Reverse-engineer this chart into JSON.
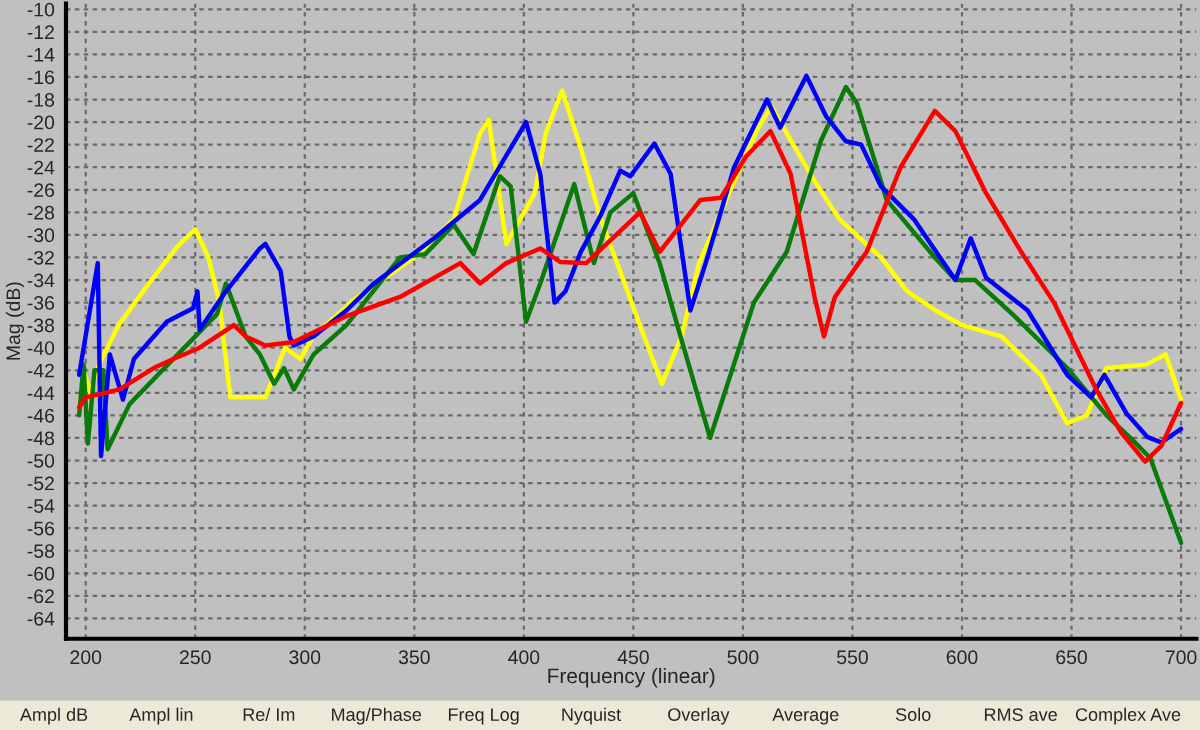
{
  "chart_data": {
    "type": "line",
    "xlabel": "Frequency (linear)",
    "ylabel": "Mag (dB)",
    "xlim": [
      191,
      707
    ],
    "xticks": [
      200,
      250,
      300,
      350,
      400,
      450,
      500,
      550,
      600,
      650,
      700
    ],
    "ylim": [
      -65.8,
      -9.5
    ],
    "yticks": [
      -64,
      -62,
      -60,
      -58,
      -56,
      -54,
      -52,
      -50,
      -48,
      -46,
      -44,
      -42,
      -40,
      -38,
      -36,
      -34,
      -32,
      -30,
      -28,
      -26,
      -24,
      -22,
      -20,
      -18,
      -16,
      -14,
      -12,
      -10
    ],
    "grid": true,
    "legend": false,
    "annotations": [
      "Ampl dB",
      "Ampl lin",
      "Re/ Im",
      "Mag/Phase",
      "Freq Log",
      "Nyquist",
      "Overlay",
      "Average",
      "Solo",
      "RMS ave",
      "Complex Ave"
    ],
    "series": [
      {
        "color": "#ffff00",
        "x": [
          197,
          199,
          202,
          206,
          215,
          230,
          242,
          250,
          256,
          261,
          266,
          282,
          291,
          298,
          304,
          322,
          350,
          368,
          380,
          384,
          392,
          405,
          410,
          417.5,
          426,
          435,
          453,
          463,
          472,
          480,
          495,
          507,
          513,
          520,
          532,
          544,
          563,
          575,
          588,
          600,
          618,
          636,
          648,
          657,
          666,
          684,
          693,
          700
        ],
        "values": [
          -46,
          -42,
          -44,
          -41.5,
          -38,
          -34,
          -31,
          -29.5,
          -32,
          -36,
          -44.4,
          -44.4,
          -40,
          -41,
          -39,
          -35.8,
          -32,
          -28.6,
          -21,
          -19.8,
          -30.8,
          -26.3,
          -21,
          -17.2,
          -22.3,
          -28.5,
          -38,
          -43.2,
          -39,
          -32.5,
          -25.7,
          -20.5,
          -18.6,
          -21,
          -25,
          -28.6,
          -32,
          -35,
          -36.7,
          -38,
          -39,
          -42.4,
          -46.7,
          -46,
          -41.8,
          -41.5,
          -40.6,
          -44.6
        ]
      },
      {
        "color": "#0a7a0a",
        "x": [
          197,
          199,
          201,
          204,
          208,
          210,
          220,
          240,
          260,
          264,
          273,
          279.5,
          286,
          290.5,
          295,
          304,
          319,
          343.5,
          355,
          368,
          377,
          389,
          394,
          401,
          407.5,
          423,
          432,
          439.5,
          450,
          462,
          471.5,
          485,
          505,
          520,
          535.5,
          547,
          552,
          565.6,
          587.6,
          597,
          606,
          624,
          648,
          666,
          679,
          686,
          700
        ],
        "values": [
          -46,
          -41.5,
          -48.5,
          -42,
          -42,
          -49,
          -45,
          -41,
          -37,
          -34.3,
          -39,
          -40.6,
          -43.2,
          -41.8,
          -43.7,
          -40.6,
          -38,
          -32,
          -31.7,
          -29.1,
          -31.7,
          -24.8,
          -25.7,
          -37.7,
          -34.3,
          -25.5,
          -32.5,
          -28,
          -26.3,
          -32.5,
          -39,
          -48,
          -36,
          -31.5,
          -21.7,
          -16.9,
          -18.3,
          -26.9,
          -32,
          -34,
          -34,
          -37.2,
          -41.8,
          -46,
          -48.4,
          -49.8,
          -57.3
        ]
      },
      {
        "color": "#0000ff",
        "x": [
          197,
          205.5,
          207,
          211,
          217,
          222,
          237,
          249,
          251,
          252,
          264,
          279.5,
          282,
          289,
          293,
          295,
          304,
          319,
          331.6,
          359,
          380,
          401,
          407.5,
          414,
          419,
          426,
          435,
          444,
          448.6,
          459.6,
          467,
          476,
          483,
          496,
          511,
          517,
          529,
          538,
          547,
          554,
          563,
          578,
          597,
          604,
          611,
          630,
          648,
          659,
          665,
          675,
          684.5,
          691,
          700
        ],
        "values": [
          -42.4,
          -32.5,
          -49.6,
          -40.6,
          -44.6,
          -41,
          -37.7,
          -36.5,
          -35,
          -38.4,
          -35,
          -31.2,
          -30.8,
          -33.2,
          -39,
          -39.8,
          -39,
          -36.7,
          -34.3,
          -30.3,
          -26.9,
          -20,
          -24.6,
          -36,
          -35,
          -31.5,
          -28.3,
          -24.3,
          -24.8,
          -21.9,
          -24.6,
          -36.7,
          -32.5,
          -24,
          -18,
          -20.5,
          -15.9,
          -19.5,
          -21.7,
          -22,
          -25.7,
          -28.6,
          -34,
          -30.3,
          -33.8,
          -36.7,
          -42.4,
          -44.4,
          -42.4,
          -45.8,
          -47.9,
          -48.4,
          -47.2
        ]
      },
      {
        "color": "#ff0000",
        "x": [
          197,
          200,
          215.5,
          231,
          240,
          252,
          267.6,
          273,
          282,
          295,
          319,
          343.5,
          371,
          380,
          392,
          407.5,
          416.6,
          428.5,
          453,
          462,
          480.6,
          490,
          501.6,
          512.6,
          521.8,
          532.7,
          537,
          542,
          556.5,
          572,
          587.6,
          597,
          611,
          627,
          642,
          661,
          672.6,
          683.6,
          691,
          700
        ],
        "values": [
          -45.3,
          -44.4,
          -43.7,
          -41.8,
          -41,
          -40,
          -38,
          -39,
          -39.8,
          -39.5,
          -37.2,
          -35.5,
          -32.5,
          -34.3,
          -32.5,
          -31.2,
          -32.4,
          -32.5,
          -28,
          -31.5,
          -26.9,
          -26.7,
          -23,
          -20.8,
          -24.6,
          -35.5,
          -39,
          -35.5,
          -31.5,
          -24,
          -19,
          -20.8,
          -26.3,
          -31.5,
          -36,
          -43.6,
          -47.5,
          -50.1,
          -48.7,
          -44.9
        ]
      }
    ]
  }
}
